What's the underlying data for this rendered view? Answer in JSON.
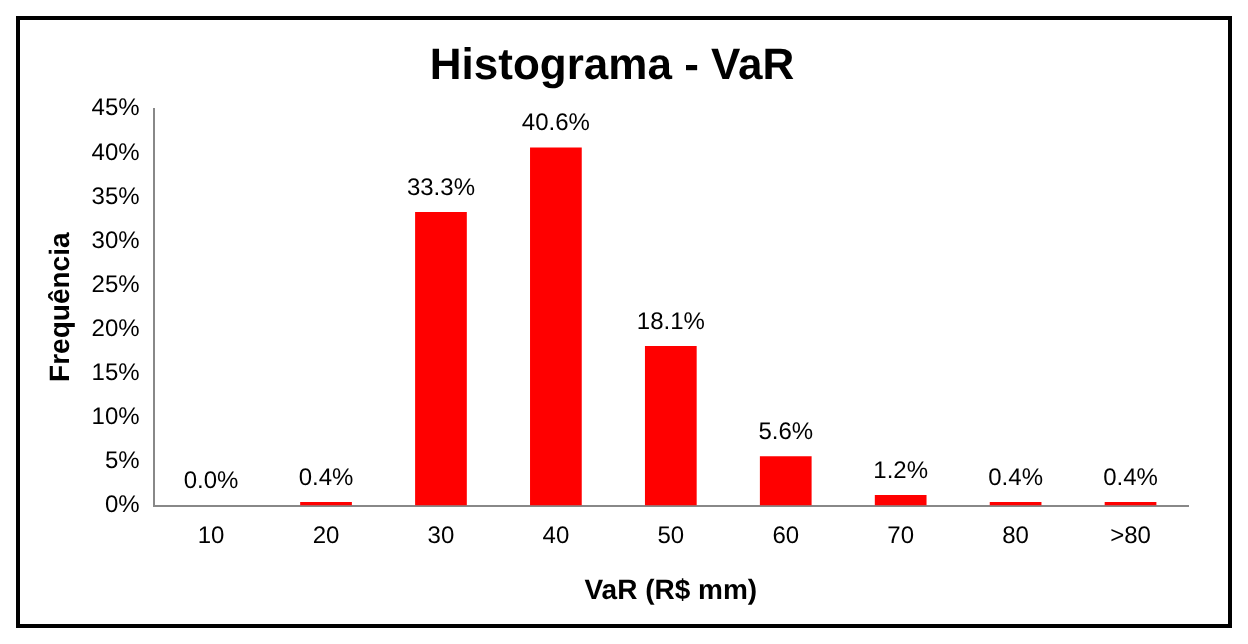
{
  "chart_data": {
    "type": "bar",
    "title": "Histograma - VaR",
    "xlabel": "VaR (R$ mm)",
    "ylabel": "Frequência",
    "categories": [
      "10",
      "20",
      "30",
      "40",
      "50",
      "60",
      "70",
      "80",
      ">80"
    ],
    "values": [
      0.0,
      0.4,
      33.3,
      40.6,
      18.1,
      5.6,
      1.2,
      0.4,
      0.4
    ],
    "value_labels": [
      "0.0%",
      "0.4%",
      "33.3%",
      "40.6%",
      "18.1%",
      "5.6%",
      "1.2%",
      "0.4%",
      "0.4%"
    ],
    "color": "#ff0000",
    "ylim": [
      0,
      45
    ],
    "yticks": [
      {
        "value": 0,
        "label": "0%"
      },
      {
        "value": 5,
        "label": "5%"
      },
      {
        "value": 10,
        "label": "10%"
      },
      {
        "value": 15,
        "label": "15%"
      },
      {
        "value": 20,
        "label": "20%"
      },
      {
        "value": 25,
        "label": "25%"
      },
      {
        "value": 30,
        "label": "30%"
      },
      {
        "value": 35,
        "label": "35%"
      },
      {
        "value": 40,
        "label": "40%"
      },
      {
        "value": 45,
        "label": "45%"
      }
    ],
    "grid": false,
    "legend": false
  }
}
